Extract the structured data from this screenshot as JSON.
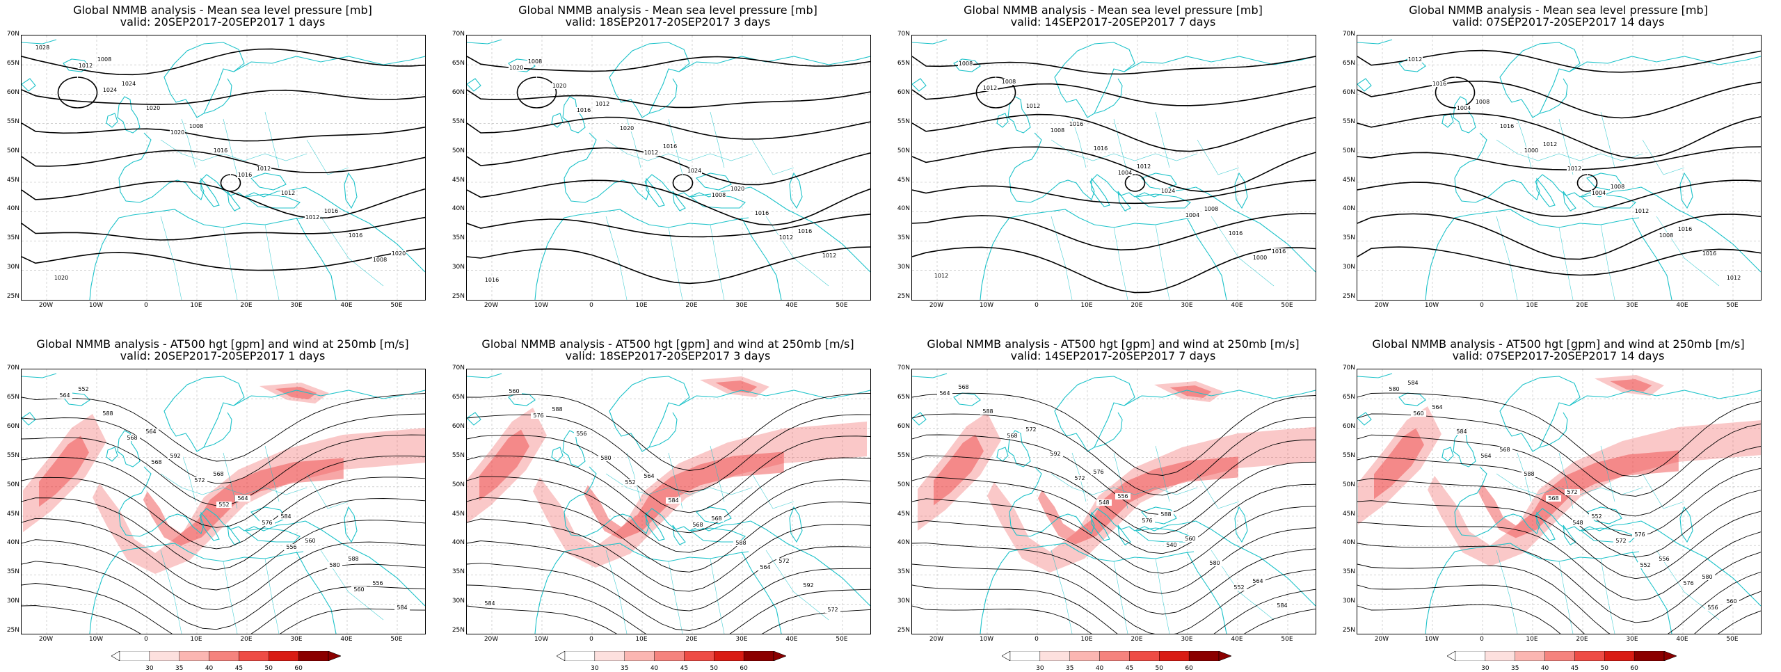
{
  "panels_top": [
    {
      "title_line1": "Global NMMB analysis - Mean sea level pressure [mb]",
      "title_line2": "valid: 20SEP2017-20SEP2017   1 days",
      "labels": [
        "1028",
        "1024",
        "1020",
        "1016",
        "1012",
        "1008",
        "1012",
        "1020",
        "1016",
        "1012",
        "1016",
        "1020",
        "1024",
        "1008",
        "1012",
        "1016",
        "1020",
        "1008"
      ]
    },
    {
      "title_line1": "Global NMMB analysis - Mean sea level pressure [mb]",
      "title_line2": "valid: 18SEP2017-20SEP2017   3 days",
      "labels": [
        "1020",
        "1016",
        "1012",
        "1008",
        "1012",
        "1016",
        "1020",
        "1020",
        "1024",
        "1016",
        "1012",
        "1008",
        "1012",
        "1016",
        "1020",
        "1016"
      ]
    },
    {
      "title_line1": "Global NMMB analysis - Mean sea level pressure [mb]",
      "title_line2": "valid: 14SEP2017-20SEP2017   7 days",
      "labels": [
        "1012",
        "1008",
        "1004",
        "1004",
        "1000",
        "1008",
        "1012",
        "1016",
        "1024",
        "1016",
        "1012",
        "1008",
        "1016",
        "1012",
        "1008",
        "1016"
      ]
    },
    {
      "title_line1": "Global NMMB analysis - Mean sea level pressure [mb]",
      "title_line2": "valid: 07SEP2017-20SEP2017   14 days",
      "labels": [
        "1004",
        "1000",
        "1004",
        "1008",
        "1012",
        "1016",
        "1016",
        "1012",
        "1012",
        "1016",
        "1012",
        "1008",
        "1012",
        "1008",
        "1016"
      ]
    }
  ],
  "panels_bottom": [
    {
      "title_line1": "Global NMMB analysis - AT500 hgt [gpm] and wind at 250mb [m/s]",
      "title_line2": "valid: 20SEP2017-20SEP2017   1 days",
      "labels": [
        "568",
        "552",
        "556",
        "560",
        "564",
        "568",
        "572",
        "576",
        "580",
        "584",
        "588",
        "592",
        "564",
        "560",
        "556",
        "552",
        "564",
        "568",
        "584",
        "588"
      ]
    },
    {
      "title_line1": "Global NMMB analysis - AT500 hgt [gpm] and wind at 250mb [m/s]",
      "title_line2": "valid: 18SEP2017-20SEP2017   3 days",
      "labels": [
        "552",
        "568",
        "564",
        "572",
        "576",
        "580",
        "584",
        "588",
        "592",
        "560",
        "556",
        "564",
        "568",
        "572",
        "584",
        "588"
      ]
    },
    {
      "title_line1": "Global NMMB analysis - AT500 hgt [gpm] and wind at 250mb [m/s]",
      "title_line2": "valid: 14SEP2017-20SEP2017   7 days",
      "labels": [
        "548",
        "540",
        "552",
        "564",
        "568",
        "572",
        "576",
        "580",
        "584",
        "588",
        "592",
        "556",
        "560",
        "564",
        "568",
        "572",
        "576",
        "588"
      ]
    },
    {
      "title_line1": "Global NMMB analysis - AT500 hgt [gpm] and wind at 250mb [m/s]",
      "title_line2": "valid: 07SEP2017-20SEP2017   14 days",
      "labels": [
        "548",
        "552",
        "556",
        "560",
        "564",
        "568",
        "572",
        "576",
        "580",
        "584",
        "588",
        "552",
        "556",
        "560",
        "564",
        "568",
        "572",
        "576",
        "580",
        "584"
      ]
    }
  ],
  "lat_labels": [
    "70N",
    "65N",
    "60N",
    "55N",
    "50N",
    "45N",
    "40N",
    "35N",
    "30N",
    "25N"
  ],
  "lon_labels": [
    "20W",
    "10W",
    "0",
    "10E",
    "20E",
    "30E",
    "40E",
    "50E"
  ],
  "colorbar": {
    "ticks": [
      "30",
      "35",
      "40",
      "45",
      "50",
      "60"
    ],
    "colors": [
      "#ffffff",
      "#fde0de",
      "#fbb6b2",
      "#f5837e",
      "#ee4c45",
      "#d91c14",
      "#8b0000"
    ]
  },
  "colors": {
    "coast": "#1cc2c9",
    "contour": "#000000",
    "wind": "#ee3b3b"
  }
}
